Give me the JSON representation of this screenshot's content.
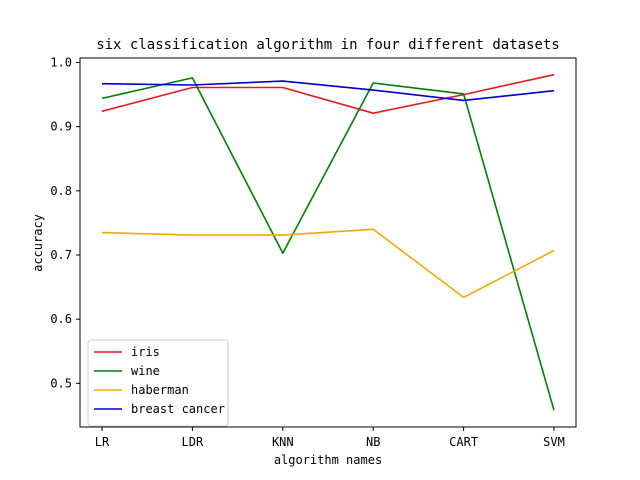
{
  "chart_data": {
    "type": "line",
    "title": "six classification algorithm in four different datasets",
    "xlabel": "algorithm names",
    "ylabel": "accuracy",
    "categories": [
      "LR",
      "LDR",
      "KNN",
      "NB",
      "CART",
      "SVM"
    ],
    "yticks": [
      "0.5",
      "0.6",
      "0.7",
      "0.8",
      "0.9",
      "1.0"
    ],
    "ylim": [
      0.432,
      1.007
    ],
    "grid": false,
    "legend_position": "lower-left",
    "series": [
      {
        "name": "iris",
        "color": "#e41a1c",
        "values": [
          0.924,
          0.961,
          0.961,
          0.921,
          0.95,
          0.981
        ]
      },
      {
        "name": "wine",
        "color": "#008000",
        "values": [
          0.944,
          0.976,
          0.703,
          0.968,
          0.951,
          0.458
        ]
      },
      {
        "name": "haberman",
        "color": "#f5a800",
        "values": [
          0.735,
          0.731,
          0.731,
          0.74,
          0.634,
          0.707
        ]
      },
      {
        "name": "breast cancer",
        "color": "#0000cd",
        "values": [
          0.967,
          0.965,
          0.971,
          0.957,
          0.941,
          0.956
        ]
      }
    ]
  }
}
